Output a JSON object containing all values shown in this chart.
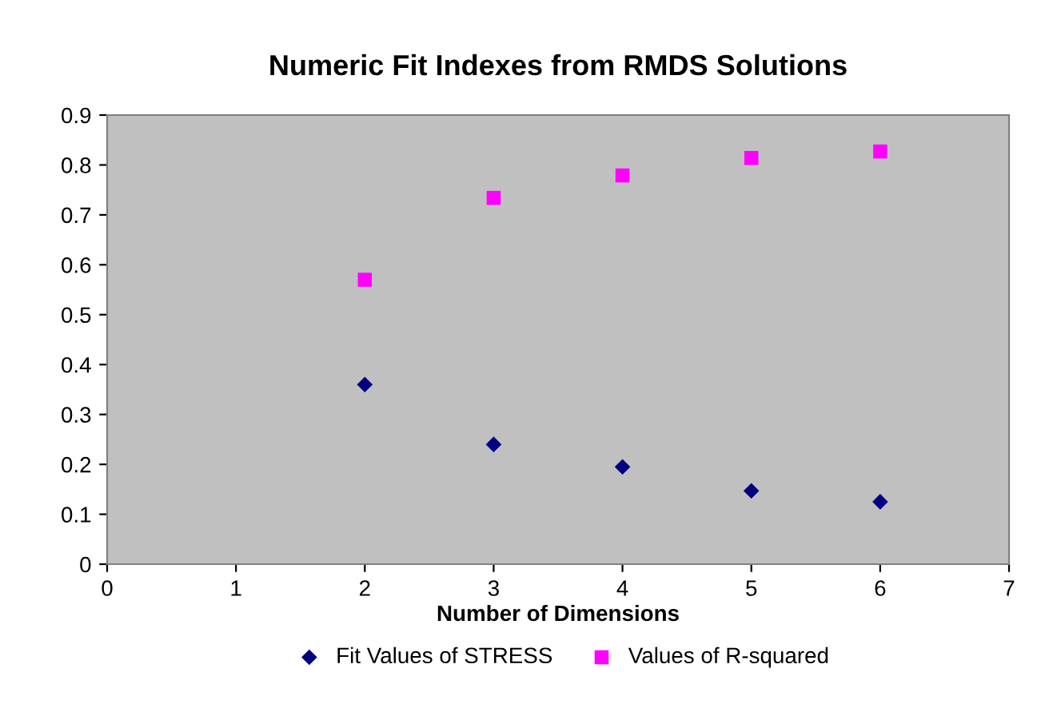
{
  "chart_data": {
    "type": "scatter",
    "title": "Numeric Fit Indexes from RMDS Solutions",
    "xlabel": "Number of Dimensions",
    "x": [
      2,
      3,
      4,
      5,
      6
    ],
    "series": [
      {
        "name": "Fit Values of STRESS",
        "color": "#000080",
        "marker": "diamond",
        "values": [
          0.36,
          0.24,
          0.195,
          0.147,
          0.125
        ]
      },
      {
        "name": "Values of R-squared",
        "color": "#ff00ff",
        "marker": "square",
        "values": [
          0.57,
          0.734,
          0.779,
          0.814,
          0.827
        ]
      }
    ],
    "xlim": [
      0,
      7
    ],
    "xticks": [
      0,
      1,
      2,
      3,
      4,
      5,
      6,
      7
    ],
    "ylim": [
      0,
      0.9
    ],
    "yticks": [
      0,
      0.1,
      0.2,
      0.3,
      0.4,
      0.5,
      0.6,
      0.7,
      0.8,
      0.9
    ],
    "grid": false,
    "legend": "bottom"
  }
}
